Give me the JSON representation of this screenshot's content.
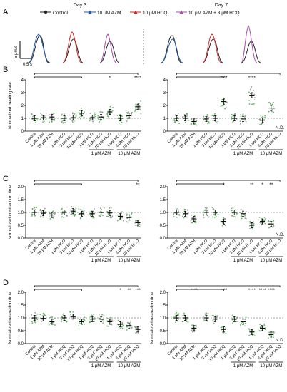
{
  "figure": {
    "panel_letters": [
      "A",
      "B",
      "C",
      "D"
    ],
    "day_titles": [
      "Day 3",
      "Day 7"
    ],
    "legend": [
      {
        "label": "Control",
        "color": "#222222",
        "marker": "circle"
      },
      {
        "label": "10 μM AZM",
        "color": "#1f5aa6",
        "marker": "triangle"
      },
      {
        "label": "10 μM HCQ",
        "color": "#d42a2a",
        "marker": "triangle"
      },
      {
        "label": "10 μM AZM + 3 μM HCQ",
        "color": "#a64ca6",
        "marker": "triangle"
      }
    ],
    "trace_scale": {
      "y_label": "5 μm/s",
      "x_label": "0.5 s"
    },
    "colors": {
      "point_green": "#4caf50",
      "point_gray": "#888888",
      "line": "#000000",
      "dash": "#555555"
    }
  },
  "chart_data": [
    {
      "type": "scatter",
      "panel": "B",
      "day": "Day 3",
      "ylabel": "Normalized beating rate",
      "ylim": [
        0,
        4
      ],
      "yticks": [
        0,
        1,
        2,
        3,
        4
      ],
      "categories": [
        "Control",
        "1 μM AZM",
        "10 μM AZM",
        "1 μM HCQ",
        "3 μM HCQ",
        "10 μM HCQ",
        "1 μM HCQ",
        "3 μM HCQ",
        "10 μM HCQ",
        "1 μM HCQ",
        "3 μM HCQ",
        "10 μM HCQ"
      ],
      "group_labels": [
        {
          "text": "1 μM AZM",
          "from": 6,
          "to": 8
        },
        {
          "text": "10 μM AZM",
          "from": 9,
          "to": 11
        }
      ],
      "means": [
        1.0,
        1.05,
        1.1,
        1.0,
        1.05,
        1.4,
        1.05,
        1.1,
        1.5,
        1.0,
        1.2,
        1.9
      ],
      "sig_marks": [
        "",
        "",
        "",
        "",
        "",
        "",
        "",
        "",
        "*",
        "",
        "",
        "****"
      ],
      "brackets": [
        [
          0,
          5
        ],
        [
          0,
          11
        ]
      ],
      "nd": []
    },
    {
      "type": "scatter",
      "panel": "B",
      "day": "Day 7",
      "ylabel": "",
      "ylim": [
        0,
        4
      ],
      "yticks": [
        0,
        1,
        2,
        3,
        4
      ],
      "categories": [
        "Control",
        "1 μM AZM",
        "10 μM AZM",
        "1 μM HCQ",
        "3 μM HCQ",
        "10 μM HCQ",
        "1 μM HCQ",
        "3 μM HCQ",
        "10 μM HCQ",
        "1 μM HCQ",
        "3 μM HCQ",
        "10 μM HCQ"
      ],
      "group_labels": [
        {
          "text": "1 μM AZM",
          "from": 6,
          "to": 8
        },
        {
          "text": "10 μM AZM",
          "from": 9,
          "to": 11
        }
      ],
      "means": [
        1.0,
        1.0,
        0.75,
        0.95,
        1.0,
        2.3,
        1.0,
        0.95,
        2.8,
        0.85,
        1.8,
        null
      ],
      "sig_marks": [
        "",
        "",
        "",
        "",
        "",
        "****",
        "",
        "",
        "****",
        "",
        "",
        ""
      ],
      "brackets": [
        [
          0,
          5
        ],
        [
          0,
          11
        ]
      ],
      "nd": [
        "N.D."
      ]
    },
    {
      "type": "scatter",
      "panel": "C",
      "day": "Day 3",
      "ylabel": "Normalized contraction time",
      "ylim": [
        0,
        2
      ],
      "yticks": [
        0.0,
        0.5,
        1.0,
        1.5,
        2.0
      ],
      "categories": [
        "Control",
        "1 μM AZM",
        "10 μM AZM",
        "1 μM HCQ",
        "3 μM HCQ",
        "10 μM HCQ",
        "1 μM HCQ",
        "3 μM HCQ",
        "10 μM HCQ",
        "1 μM HCQ",
        "3 μM HCQ",
        "10 μM HCQ"
      ],
      "group_labels": [
        {
          "text": "1 μM AZM",
          "from": 6,
          "to": 8
        },
        {
          "text": "10 μM AZM",
          "from": 9,
          "to": 11
        }
      ],
      "means": [
        1.0,
        0.97,
        0.9,
        1.0,
        1.05,
        0.95,
        0.95,
        1.0,
        0.98,
        0.85,
        0.8,
        0.6
      ],
      "sig_marks": [
        "",
        "",
        "",
        "",
        "",
        "",
        "",
        "",
        "",
        "",
        "",
        "**"
      ],
      "brackets": [
        [
          0,
          5
        ],
        [
          0,
          11
        ]
      ],
      "nd": []
    },
    {
      "type": "scatter",
      "panel": "C",
      "day": "Day 7",
      "ylabel": "",
      "ylim": [
        0,
        2
      ],
      "yticks": [
        0.0,
        0.5,
        1.0,
        1.5,
        2.0
      ],
      "categories": [
        "Control",
        "1 μM AZM",
        "10 μM AZM",
        "1 μM HCQ",
        "3 μM HCQ",
        "10 μM HCQ",
        "1 μM HCQ",
        "3 μM HCQ",
        "10 μM HCQ",
        "1 μM HCQ",
        "3 μM HCQ",
        "10 μM HCQ"
      ],
      "group_labels": [
        {
          "text": "1 μM AZM",
          "from": 6,
          "to": 8
        },
        {
          "text": "10 μM AZM",
          "from": 9,
          "to": 11
        }
      ],
      "means": [
        1.0,
        0.95,
        0.75,
        1.0,
        1.0,
        0.65,
        1.0,
        0.95,
        0.5,
        0.65,
        0.55,
        null
      ],
      "sig_marks": [
        "",
        "",
        "",
        "",
        "",
        "*",
        "",
        "",
        "**",
        "*",
        "**",
        ""
      ],
      "brackets": [
        [
          0,
          5
        ],
        [
          0,
          11
        ]
      ],
      "nd": [
        "N.D."
      ]
    },
    {
      "type": "scatter",
      "panel": "D",
      "day": "Day 3",
      "ylabel": "Normalized relaxation time",
      "ylim": [
        0,
        2
      ],
      "yticks": [
        0.0,
        0.5,
        1.0,
        1.5,
        2.0
      ],
      "categories": [
        "Control",
        "1 μM AZM",
        "10 μM AZM",
        "1 μM HCQ",
        "3 μM HCQ",
        "10 μM HCQ",
        "1 μM HCQ",
        "3 μM HCQ",
        "10 μM HCQ",
        "1 μM HCQ",
        "3 μM HCQ",
        "10 μM HCQ"
      ],
      "group_labels": [
        {
          "text": "1 μM AZM",
          "from": 6,
          "to": 8
        },
        {
          "text": "10 μM AZM",
          "from": 9,
          "to": 11
        }
      ],
      "means": [
        1.0,
        0.98,
        0.85,
        1.0,
        1.05,
        0.85,
        0.95,
        0.95,
        0.85,
        0.75,
        0.7,
        0.55
      ],
      "sig_marks": [
        "",
        "",
        "",
        "",
        "",
        "",
        "",
        "",
        "",
        "*",
        "**",
        "***"
      ],
      "brackets": [
        [
          0,
          5
        ],
        [
          0,
          11
        ]
      ],
      "nd": []
    },
    {
      "type": "scatter",
      "panel": "D",
      "day": "Day 7",
      "ylabel": "Normalized relaxation time",
      "ylim": [
        0,
        2
      ],
      "yticks": [
        0.0,
        0.5,
        1.0,
        1.5,
        2.0
      ],
      "categories": [
        "Control",
        "1 μM AZM",
        "10 μM AZM",
        "1 μM HCQ",
        "3 μM HCQ",
        "10 μM HCQ",
        "1 μM HCQ",
        "3 μM HCQ",
        "10 μM HCQ",
        "1 μM HCQ",
        "3 μM HCQ",
        "10 μM HCQ"
      ],
      "group_labels": [
        {
          "text": "1 μM AZM",
          "from": 6,
          "to": 8
        },
        {
          "text": "10 μM AZM",
          "from": 9,
          "to": 11
        }
      ],
      "means": [
        1.0,
        1.0,
        0.6,
        1.0,
        0.95,
        0.55,
        0.95,
        0.85,
        0.45,
        0.6,
        0.35,
        null
      ],
      "sig_marks": [
        "",
        "",
        "****",
        "",
        "",
        "****",
        "",
        "",
        "****",
        "****",
        "****",
        ""
      ],
      "brackets": [
        [
          0,
          5
        ],
        [
          0,
          11
        ]
      ],
      "nd": [
        "N.D."
      ]
    }
  ]
}
